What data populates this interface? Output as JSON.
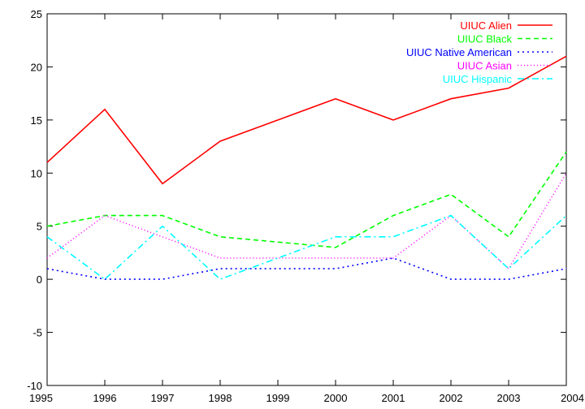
{
  "chart_data": {
    "type": "line",
    "title": "",
    "xlabel": "",
    "ylabel": "",
    "x": [
      1995,
      1996,
      1997,
      1998,
      1999,
      2000,
      2001,
      2002,
      2003,
      2004
    ],
    "xlim": [
      1995,
      2004
    ],
    "ylim": [
      -10,
      25
    ],
    "xticks": [
      "1995",
      "1996",
      "1997",
      "1998",
      "1999",
      "2000",
      "2001",
      "2002",
      "2003",
      "2004"
    ],
    "yticks": [
      "-10",
      "-5",
      "0",
      "5",
      "10",
      "15",
      "20",
      "25"
    ],
    "grid": false,
    "legend_position": "top-right",
    "series": [
      {
        "name": "UIUC Alien",
        "color": "#ff0000",
        "dash": "solid",
        "values": [
          11,
          16,
          9,
          13,
          15,
          17,
          15,
          17,
          18,
          21
        ]
      },
      {
        "name": "UIUC Black",
        "color": "#00ff00",
        "dash": "dashed",
        "values": [
          5,
          6,
          6,
          4,
          3.5,
          3,
          6,
          8,
          4,
          12
        ]
      },
      {
        "name": "UIUC Native American",
        "color": "#0000ff",
        "dash": "dotted",
        "values": [
          1,
          0,
          0,
          1,
          1,
          1,
          2,
          0,
          0,
          1
        ]
      },
      {
        "name": "UIUC Asian",
        "color": "#ff00ff",
        "dash": "fine-dotted",
        "values": [
          2,
          6,
          4,
          2,
          2,
          2,
          2,
          6,
          1,
          10
        ]
      },
      {
        "name": "UIUC Hispanic",
        "color": "#00ffff",
        "dash": "dash-dot",
        "values": [
          4,
          0,
          5,
          0,
          2,
          4,
          4,
          6,
          1,
          6
        ]
      }
    ]
  }
}
